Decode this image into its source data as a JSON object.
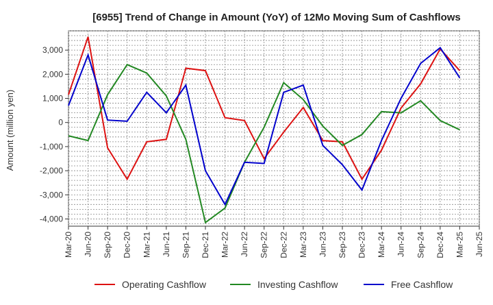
{
  "chart_data": {
    "type": "line",
    "title": "[6955]  Trend of Change in Amount (YoY) of 12Mo Moving Sum of Cashflows",
    "xlabel": "",
    "ylabel": "Amount (million yen)",
    "ylim": [
      -4300,
      3800
    ],
    "yticks": [
      3000,
      2000,
      1000,
      0,
      -1000,
      -2000,
      -3000,
      -4000
    ],
    "ytick_labels": [
      "3,000",
      "2,000",
      "1,000",
      "0",
      "-1,000",
      "-2,000",
      "-3,000",
      "-4,000"
    ],
    "categories": [
      "Mar-20",
      "Jun-20",
      "Sep-20",
      "Dec-20",
      "Mar-21",
      "Jun-21",
      "Sep-21",
      "Dec-21",
      "Mar-22",
      "Jun-22",
      "Sep-22",
      "Dec-22",
      "Mar-23",
      "Jun-23",
      "Sep-23",
      "Dec-23",
      "Mar-24",
      "Jun-24",
      "Sep-24",
      "Dec-24",
      "Mar-25",
      "Jun-25"
    ],
    "grid": true,
    "legend_position": "bottom",
    "series": [
      {
        "name": "Operating Cashflow",
        "color": "#dd1111",
        "values": [
          1150,
          3550,
          -1050,
          -2350,
          -800,
          -700,
          2250,
          2150,
          200,
          80,
          -1500,
          -400,
          620,
          -750,
          -800,
          -2350,
          -1150,
          600,
          1600,
          3050,
          2150,
          null
        ]
      },
      {
        "name": "Investing Cashflow",
        "color": "#228822",
        "values": [
          -550,
          -750,
          1150,
          2400,
          2050,
          1100,
          -700,
          -4150,
          -3550,
          -1650,
          -200,
          1650,
          950,
          -150,
          -950,
          -500,
          450,
          400,
          900,
          80,
          -300,
          null
        ]
      },
      {
        "name": "Free Cashflow",
        "color": "#0000cc",
        "values": [
          700,
          2800,
          100,
          50,
          1250,
          400,
          1550,
          -2000,
          -3400,
          -1650,
          -1700,
          1250,
          1550,
          -950,
          -1750,
          -2800,
          -750,
          1000,
          2450,
          3100,
          1850,
          null
        ]
      }
    ]
  }
}
